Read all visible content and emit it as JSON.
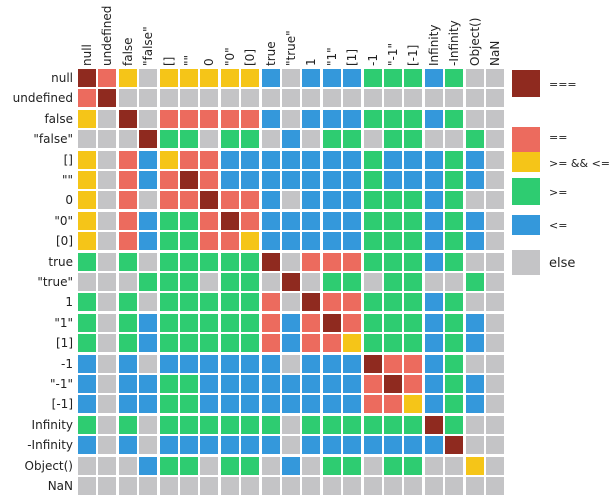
{
  "chart_data": {
    "type": "heatmap",
    "labels": [
      "null",
      "undefined",
      "false",
      "\"false\"",
      "[]",
      "\"\"",
      "0",
      "\"0\"",
      "[0]",
      "true",
      "\"true\"",
      "1",
      "\"1\"",
      "[1]",
      "-1",
      "\"-1\"",
      "[-1]",
      "Infinity",
      "-Infinity",
      "Object()",
      "NaN"
    ],
    "legend": [
      {
        "code": "E",
        "label": "===",
        "color": "#8f2a1f"
      },
      {
        "code": "Q",
        "label": "==",
        "color": "#ec6b5e"
      },
      {
        "code": "B",
        "label": ">= && <=",
        "color": "#f5c518"
      },
      {
        "code": "G",
        "label": ">=",
        "color": "#2ecc71"
      },
      {
        "code": "L",
        "label": "<=",
        "color": "#3498db"
      },
      {
        "code": "X",
        "label": "else",
        "color": "#c4c4c6"
      }
    ],
    "matrix": [
      "EQBXBBBBBLXLLLGGGLGXX",
      "QEXXXXXXXXXXXXXXXXXXX",
      "BXEXQQQQQLXLLLGGGLGXX",
      "XXXEGGXGGXLXGGXGGXXGX",
      "BXQLBQQLLLLLLLGLLLGLX",
      "BXQLQEQLLLLLLLGLLLGLX",
      "BXQXQQEQQLXLLLGGGLGXX",
      "BXQLGGQEQLLLLLGGGLGLX",
      "BXQLGGQQBLLLLLGGGLGLX",
      "GXGXGGGGGEXQQQGGGLGXX",
      "XXXGGGXGGXEXGGXGGXXGX",
      "GXGXGGGGGQXEQQGGGLGXX",
      "GXGLGGGGGQLQEQGGGLGLX",
      "GXGLGGGGGQLQQBGGGLGLX",
      "LXLXLLLLLLXLLLEQQLGXX",
      "LXLLGGLLLLLLLLQEQLGLX",
      "LXLLGGLLLLLLLLQQBLGLX",
      "GXGXGGGGGGXGGGGGGEGXX",
      "LXLXLLLLLLXLLLLLLLEXX",
      "XXXLGGXGGXLXGGXGGXXBX",
      "XXXXXXXXXXXXXXXXXXXXX"
    ]
  }
}
